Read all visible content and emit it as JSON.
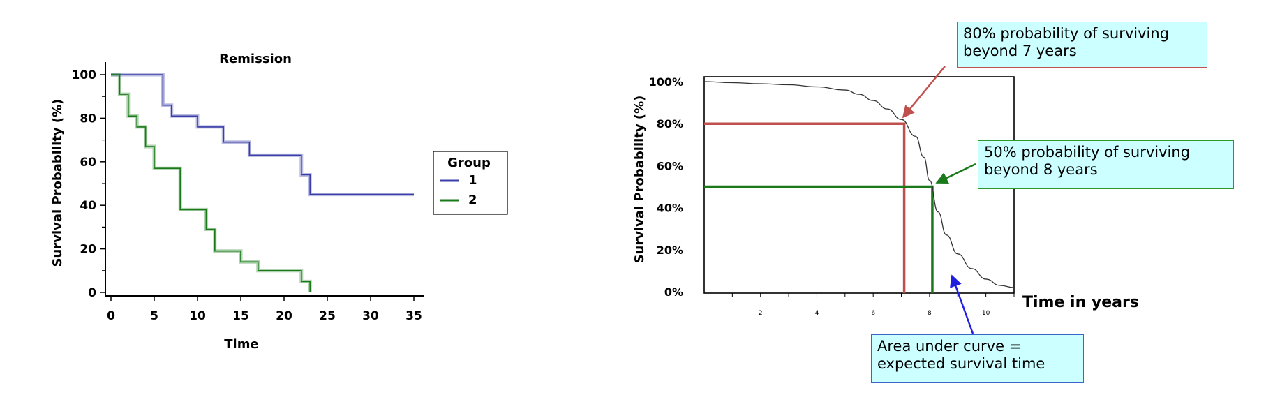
{
  "chart_data": [
    {
      "type": "line",
      "title": "Remission",
      "xlabel": "Time",
      "ylabel": "Survival Probability (%)",
      "xlim": [
        0,
        35
      ],
      "ylim": [
        0,
        100
      ],
      "x_ticks": [
        0,
        5,
        10,
        15,
        20,
        25,
        30,
        35
      ],
      "y_ticks": [
        0,
        20,
        40,
        60,
        80,
        100
      ],
      "legend": {
        "title": "Group",
        "position": "right"
      },
      "series": [
        {
          "name": "1",
          "color": "#3a3ea8",
          "x": [
            0,
            6,
            6,
            7,
            7,
            10,
            10,
            13,
            13,
            16,
            16,
            22,
            22,
            23,
            23,
            35
          ],
          "y": [
            100,
            100,
            86,
            86,
            81,
            81,
            76,
            76,
            69,
            69,
            63,
            63,
            54,
            54,
            45,
            45
          ]
        },
        {
          "name": "2",
          "color": "#1a7a1a",
          "x": [
            0,
            1,
            1,
            2,
            2,
            3,
            3,
            4,
            4,
            5,
            5,
            8,
            8,
            11,
            11,
            12,
            12,
            15,
            15,
            17,
            17,
            22,
            22,
            23,
            23
          ],
          "y": [
            100,
            100,
            91,
            91,
            81,
            81,
            76,
            76,
            67,
            67,
            57,
            57,
            38,
            38,
            29,
            29,
            19,
            19,
            14,
            14,
            10,
            10,
            5,
            5,
            0
          ]
        }
      ]
    },
    {
      "type": "line",
      "title": "",
      "xlabel": "Time in years",
      "ylabel": "Survival Probability (%)",
      "xlim": [
        0,
        11
      ],
      "ylim": [
        0,
        100
      ],
      "x_ticks": [
        2,
        4,
        6,
        8,
        10
      ],
      "y_ticks": [
        "0%",
        "20%",
        "40%",
        "60%",
        "80%",
        "100%"
      ],
      "series": [
        {
          "name": "",
          "x": [
            0,
            1,
            2,
            3,
            4,
            5,
            5.5,
            6,
            6.5,
            7,
            7.5,
            7.8,
            8,
            8.3,
            8.6,
            9,
            9.5,
            10,
            10.5,
            11
          ],
          "y": [
            100,
            99.5,
            99,
            98.5,
            97.5,
            96,
            94,
            91,
            87,
            82,
            74,
            64,
            53,
            38,
            27,
            18,
            11,
            6,
            3,
            2
          ]
        }
      ],
      "reference_lines": [
        {
          "y": 80,
          "x": 7.1,
          "color": "#c0504d"
        },
        {
          "y": 50,
          "x": 8.1,
          "color": "#1a7a1a"
        }
      ],
      "annotations": [
        "80% probability of surviving\nbeyond 7 years",
        "50% probability of surviving\nbeyond 8 years",
        "Area under curve =\nexpected survival time"
      ]
    }
  ]
}
